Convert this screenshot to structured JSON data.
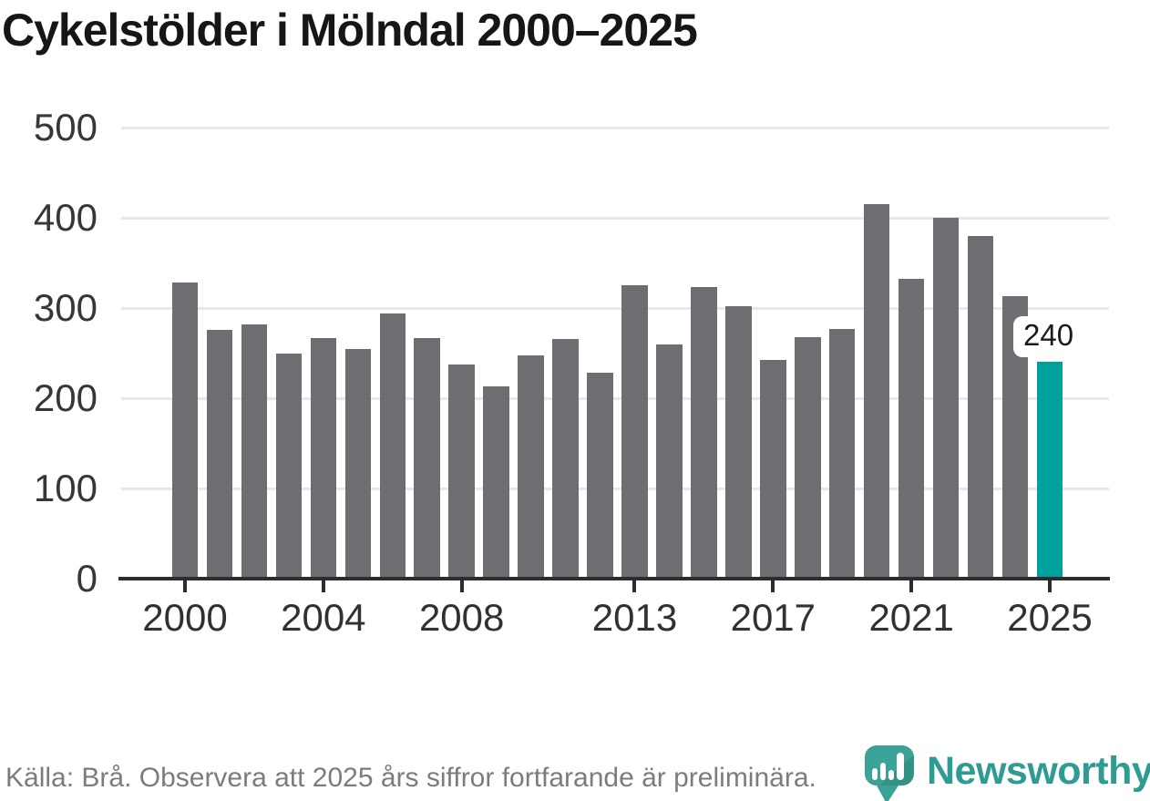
{
  "page": {
    "title": "Cykelstölder i Mölndal 2000–2025"
  },
  "footer": {
    "source_note": "Källa: Brå. Observera att 2025 års siffror fortfarande är preliminära."
  },
  "branding": {
    "name": "Newsworthy",
    "icon": "newsworthy-pin-chart-icon",
    "icon_color": "#3aa296",
    "wordmark_color": "#2f9c94"
  },
  "chart_data": {
    "type": "bar",
    "title": "Cykelstölder i Mölndal 2000–2025",
    "categories": [
      2000,
      2001,
      2002,
      2003,
      2004,
      2005,
      2006,
      2007,
      2008,
      2009,
      2010,
      2011,
      2012,
      2013,
      2014,
      2015,
      2016,
      2017,
      2018,
      2019,
      2020,
      2021,
      2022,
      2023,
      2024,
      2025
    ],
    "values": [
      328,
      276,
      282,
      249,
      267,
      255,
      294,
      267,
      237,
      213,
      247,
      266,
      228,
      325,
      260,
      323,
      302,
      242,
      268,
      277,
      415,
      332,
      400,
      380,
      313,
      240
    ],
    "bar_color": "#6e6e72",
    "highlight": {
      "index": 25,
      "label": "240",
      "color": "#00a19c"
    },
    "ylim": [
      0,
      500
    ],
    "yticks": [
      0,
      100,
      200,
      300,
      400,
      500
    ],
    "xticks": [
      2000,
      2004,
      2008,
      2013,
      2017,
      2021,
      2025
    ],
    "grid": "horizontal",
    "gridline_color": "#e8e8e9",
    "axis_color": "#2d2d2d",
    "xlabel": "",
    "ylabel": "",
    "legend": "none"
  }
}
